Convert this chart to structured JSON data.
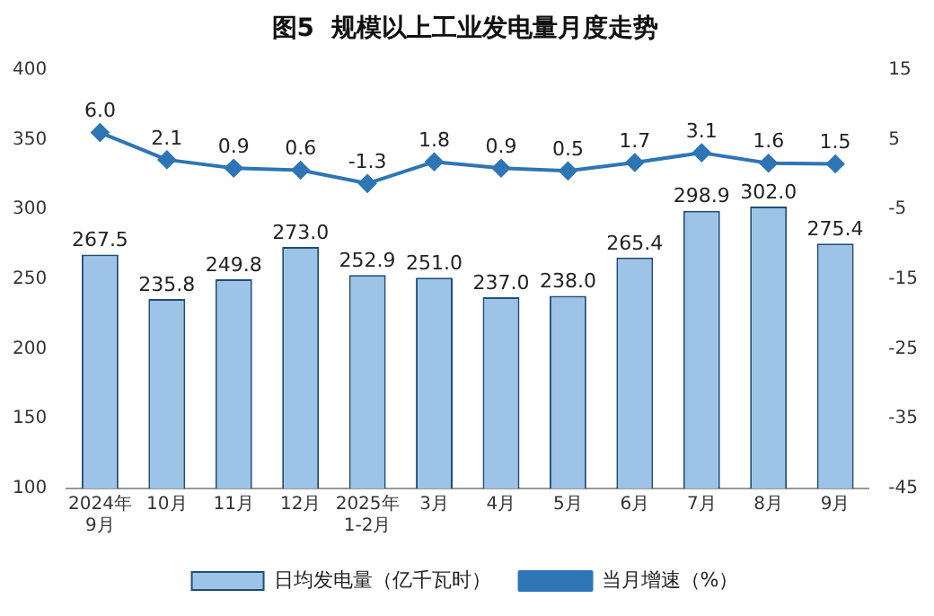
{
  "chart_data": {
    "type": "bar",
    "title": "图5  规模以上工业发电量月度走势",
    "categories": [
      "2024年\n9月",
      "10月",
      "11月",
      "12月",
      "2025年\n1-2月",
      "3月",
      "4月",
      "5月",
      "6月",
      "7月",
      "8月",
      "9月"
    ],
    "series": [
      {
        "name": "日均发电量（亿千瓦时）",
        "color": "#9dc3e6",
        "values": [
          267.5,
          235.8,
          249.8,
          273.0,
          252.9,
          251.0,
          237.0,
          238.0,
          265.4,
          298.9,
          302.0,
          275.4
        ],
        "value_labels": [
          "267.5",
          "235.8",
          "249.8",
          "273.0",
          "252.9",
          "251.0",
          "237.0",
          "238.0",
          "265.4",
          "298.9",
          "302.0",
          "275.4"
        ]
      },
      {
        "name": "当月增速（%）",
        "type": "line",
        "axis": "y2",
        "color": "#2e75b6",
        "marker": "diamond",
        "values": [
          6.0,
          2.1,
          0.9,
          0.6,
          -1.3,
          1.8,
          0.9,
          0.5,
          1.7,
          3.1,
          1.6,
          1.5
        ],
        "value_labels": [
          "6.0",
          "2.1",
          "0.9",
          "0.6",
          "-1.3",
          "1.8",
          "0.9",
          "0.5",
          "1.7",
          "3.1",
          "1.6",
          "1.5"
        ]
      }
    ],
    "ylim": [
      100,
      400
    ],
    "yticks": [
      100,
      150,
      200,
      250,
      300,
      350,
      400
    ],
    "y2lim": [
      -45,
      15
    ],
    "y2ticks": [
      -45,
      -35,
      -25,
      -15,
      -5,
      5,
      15
    ],
    "grid": false,
    "legend": "bottom"
  }
}
